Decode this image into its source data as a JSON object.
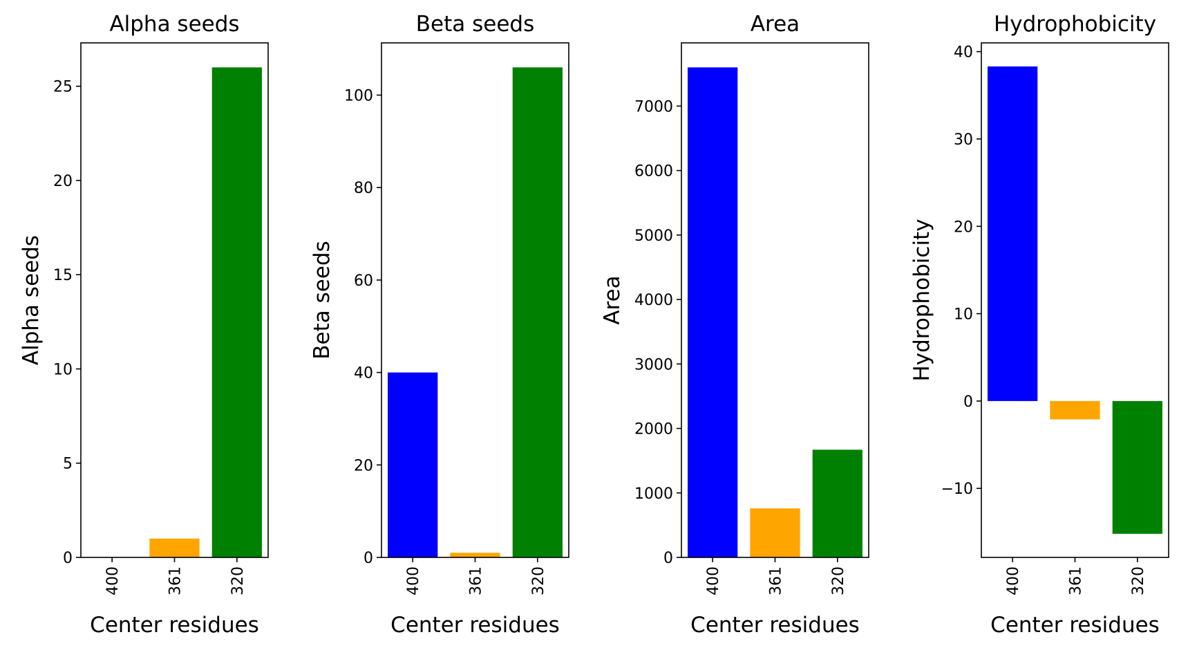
{
  "chart_data": [
    {
      "type": "bar",
      "title": "Alpha seeds",
      "xlabel": "Center residues",
      "ylabel": "Alpha seeds",
      "categories": [
        "400",
        "361",
        "320"
      ],
      "values": [
        0,
        1,
        26
      ],
      "colors": [
        "#0000ff",
        "#ffa500",
        "#008000"
      ],
      "ylim": [
        0,
        27.3
      ],
      "yticks": [
        0,
        5,
        10,
        15,
        20,
        25
      ],
      "ytick_labels": [
        "0",
        "5",
        "10",
        "15",
        "20",
        "25"
      ],
      "grid": false
    },
    {
      "type": "bar",
      "title": "Beta seeds",
      "xlabel": "Center residues",
      "ylabel": "Beta seeds",
      "categories": [
        "400",
        "361",
        "320"
      ],
      "values": [
        40,
        1,
        106
      ],
      "colors": [
        "#0000ff",
        "#ffa500",
        "#008000"
      ],
      "ylim": [
        0,
        111.3
      ],
      "yticks": [
        0,
        20,
        40,
        60,
        80,
        100
      ],
      "ytick_labels": [
        "0",
        "20",
        "40",
        "60",
        "80",
        "100"
      ],
      "grid": false
    },
    {
      "type": "bar",
      "title": "Area",
      "xlabel": "Center residues",
      "ylabel": "Area",
      "categories": [
        "400",
        "361",
        "320"
      ],
      "values": [
        7600,
        760,
        1670
      ],
      "colors": [
        "#0000ff",
        "#ffa500",
        "#008000"
      ],
      "ylim": [
        0,
        7980
      ],
      "yticks": [
        0,
        1000,
        2000,
        3000,
        4000,
        5000,
        6000,
        7000
      ],
      "ytick_labels": [
        "0",
        "1000",
        "2000",
        "3000",
        "4000",
        "5000",
        "6000",
        "7000"
      ],
      "grid": false
    },
    {
      "type": "bar",
      "title": "Hydrophobicity",
      "xlabel": "Center residues",
      "ylabel": "Hydrophobicity",
      "categories": [
        "400",
        "361",
        "320"
      ],
      "values": [
        38.3,
        -2.1,
        -15.2
      ],
      "colors": [
        "#0000ff",
        "#ffa500",
        "#008000"
      ],
      "ylim": [
        -17.9,
        41.0
      ],
      "yticks": [
        -10,
        0,
        10,
        20,
        30,
        40
      ],
      "ytick_labels": [
        "−10",
        "0",
        "10",
        "20",
        "30",
        "40"
      ],
      "grid": false
    }
  ]
}
